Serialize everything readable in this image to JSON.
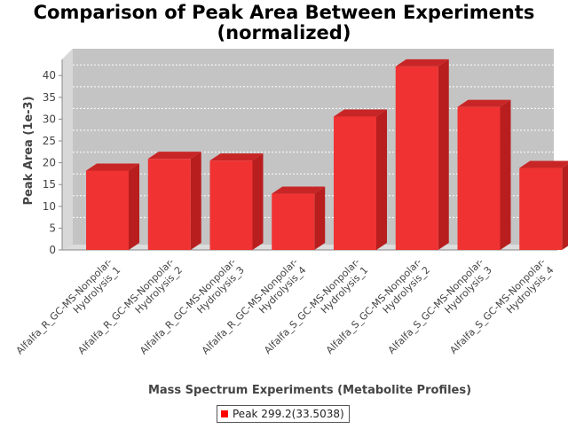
{
  "chart_data": {
    "type": "bar",
    "title_lines": [
      "Comparison of Peak Area Between Experiments",
      "(normalized)"
    ],
    "xlabel": "Mass Spectrum Experiments (Metabolite Profiles)",
    "ylabel": "Peak Area (1e-3)",
    "ylim": [
      0,
      40
    ],
    "yticks": [
      0,
      5,
      10,
      15,
      20,
      25,
      30,
      35,
      40
    ],
    "categories": [
      [
        "Alfalfa_R_GC-MS-Nonpolar-",
        "Hydrolysis_1"
      ],
      [
        "Alfalfa_R_GC-MS-Nonpolar-",
        "Hydrolysis_2"
      ],
      [
        "Alfalfa_R_GC-MS-Nonpolar-",
        "Hydrolysis_3"
      ],
      [
        "Alfalfa_R_GC-MS-Nonpolar-",
        "Hydrolysis_4"
      ],
      [
        "Alfalfa_S_GC-MS-Nonpolar-",
        "Hydrolysis_1"
      ],
      [
        "Alfalfa_S_GC-MS-Nonpolar-",
        "Hydrolysis_2"
      ],
      [
        "Alfalfa_S_GC-MS-Nonpolar-",
        "Hydrolysis_3"
      ],
      [
        "Alfalfa_S_GC-MS-Nonpolar-",
        "Hydrolysis_4"
      ]
    ],
    "series": [
      {
        "name": "Peak 299.2(33.5038)",
        "values": [
          18.2,
          20.9,
          20.5,
          12.9,
          30.6,
          42.1,
          32.8,
          18.8
        ]
      }
    ],
    "grid": true,
    "legend_position": "bottom",
    "colors": {
      "bar": "#ff0000",
      "plot_bg": "#c0c0c0",
      "grid": "#ffffff"
    }
  }
}
